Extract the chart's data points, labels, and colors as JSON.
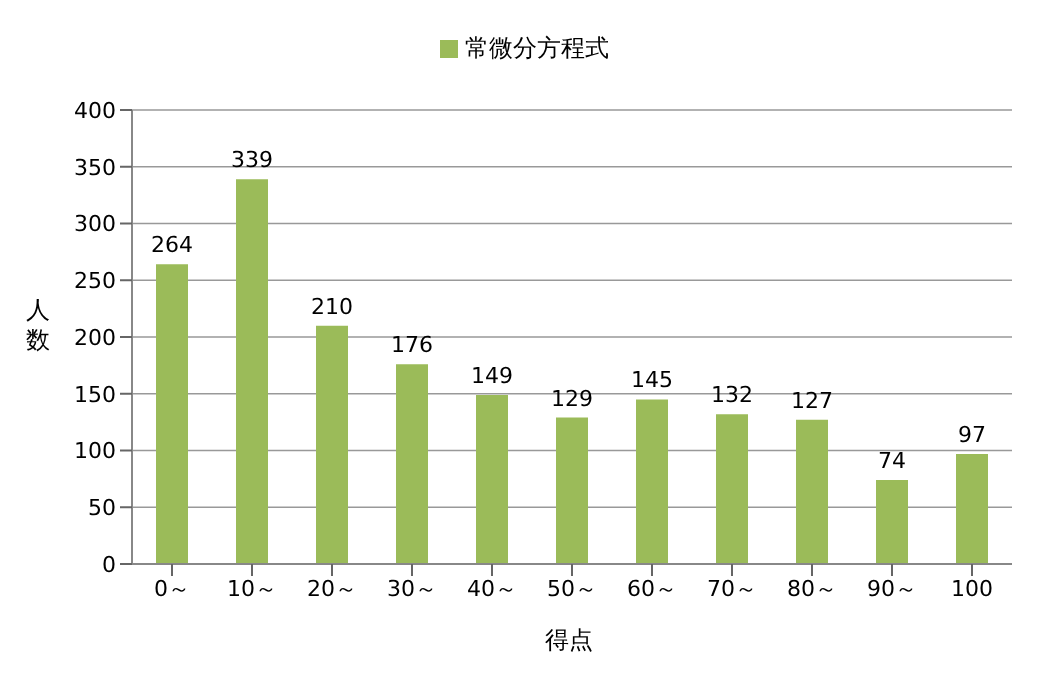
{
  "chart_data": {
    "type": "bar",
    "xlabel": "得点",
    "ylabel": "人数",
    "categories": [
      "0～",
      "10～",
      "20～",
      "30～",
      "40～",
      "50～",
      "60～",
      "70～",
      "80～",
      "90～",
      "100"
    ],
    "series": [
      {
        "name": "常微分方程式",
        "color": "#9bbb59",
        "values": [
          264,
          339,
          210,
          176,
          149,
          129,
          145,
          132,
          127,
          74,
          97
        ]
      }
    ],
    "ylim": [
      0,
      400
    ],
    "yticks": [
      0,
      50,
      100,
      150,
      200,
      250,
      300,
      350,
      400
    ],
    "grid": "y",
    "legend": "top",
    "data_labels": true
  }
}
